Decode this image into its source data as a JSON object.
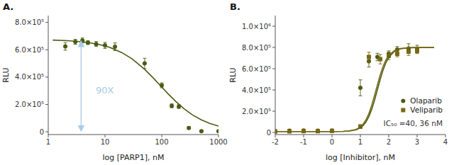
{
  "chart_data": [
    {
      "type": "scatter",
      "title": "A.",
      "x_label": "log [PARP1], nM",
      "y_label": "RLU",
      "log": "x",
      "grid": false,
      "xlim": [
        1,
        1000
      ],
      "ylim": [
        -20000,
        850000
      ],
      "xticks": [
        1,
        10,
        100,
        1000
      ],
      "yticks": [
        0,
        {
          "value": 200000,
          "label": "2.0×10⁵"
        },
        {
          "value": 400000,
          "label": "4.0×10⁵"
        },
        {
          "value": 600000,
          "label": "6.0×10⁵"
        },
        {
          "value": 800000,
          "label": "8.0×10⁵"
        }
      ],
      "series": [
        {
          "type": "scatter",
          "marker": "circle",
          "color": "#4a5c14",
          "x": [
            2,
            3,
            4,
            5,
            7,
            10,
            15,
            50,
            100,
            150,
            200,
            300,
            500,
            1000
          ],
          "values": [
            625000,
            658000,
            668000,
            652000,
            642000,
            632000,
            622000,
            500000,
            340000,
            190000,
            185000,
            28000,
            5000,
            4000
          ],
          "errors": [
            28000,
            18000,
            18000,
            14000,
            18000,
            22000,
            28000,
            38000,
            18000,
            14000,
            14000,
            9000,
            4000,
            4000
          ]
        },
        {
          "type": "line",
          "color": "#4a5c14",
          "x": [
            1.2,
            2,
            3,
            5,
            8,
            12,
            20,
            30,
            50,
            70,
            95,
            130,
            180,
            250,
            350,
            500,
            700,
            1000,
            1200
          ],
          "values": [
            670606,
            667129,
            662540,
            652906,
            637937,
            617786,
            578580,
            533324,
            456698,
            396163,
            337500,
            277283,
            218775,
            166971,
            123172,
            87074,
            61688,
            42231,
            34653
          ]
        }
      ],
      "annotations": [
        {
          "text": "90X",
          "x": 6.5,
          "y": 300000,
          "color": "#aacce8",
          "arrow": {
            "x": 3.8,
            "y": [
              660000,
              8000
            ]
          }
        }
      ]
    },
    {
      "type": "scatter",
      "title": "B.",
      "x_label": "log [Inhibitor], nM",
      "y_label": "RLU",
      "grid": false,
      "legend": "lower right",
      "xlim": [
        -2,
        4
      ],
      "ylim": [
        -20000,
        1100000
      ],
      "xticks": [
        -2,
        -1,
        0,
        1,
        2,
        3,
        4
      ],
      "yticks": [
        0,
        {
          "value": 200000,
          "label": "2.0×10⁵"
        },
        {
          "value": 400000,
          "label": "4.0×10⁵"
        },
        {
          "value": 600000,
          "label": "6.0×10⁵"
        },
        {
          "value": 800000,
          "label": "8.0×10⁵"
        },
        {
          "value": 1000000,
          "label": "1.0×10⁶"
        }
      ],
      "series": [
        {
          "name": "Olaparib",
          "type": "scatter",
          "marker": "circle",
          "color": "#4a5c14",
          "x": [
            -2.0,
            -1.5,
            -1.0,
            -0.5,
            0.0,
            1.0,
            1.3,
            1.6,
            2.0,
            2.3,
            2.7,
            3.0
          ],
          "values": [
            14000,
            16000,
            18000,
            16000,
            18000,
            420000,
            670000,
            710000,
            740000,
            780000,
            790000,
            785000
          ],
          "errors": [
            4000,
            4000,
            4000,
            4000,
            4000,
            75000,
            55000,
            35000,
            28000,
            28000,
            45000,
            35000
          ]
        },
        {
          "name": "Veliparib",
          "type": "scatter",
          "marker": "square",
          "color": "#7a6814",
          "x": [
            -2.0,
            -1.5,
            -1.0,
            -0.5,
            0.0,
            1.0,
            1.3,
            1.7,
            2.0,
            2.3,
            2.7,
            3.0
          ],
          "values": [
            8000,
            10000,
            12000,
            12000,
            14000,
            55000,
            710000,
            690000,
            720000,
            740000,
            760000,
            770000
          ],
          "errors": [
            4000,
            4000,
            4000,
            4000,
            4000,
            18000,
            45000,
            45000,
            35000,
            28000,
            35000,
            28000
          ]
        },
        {
          "type": "line",
          "color": "#4a5c14",
          "x": [
            -2.3,
            -1,
            0,
            0.4,
            0.6,
            0.8,
            0.9,
            1.0,
            1.1,
            1.2,
            1.3,
            1.4,
            1.5,
            1.6,
            1.7,
            1.8,
            1.9,
            2.0,
            2.2,
            2.4,
            2.7,
            3.0,
            3.6
          ],
          "values": [
            8000,
            8001,
            8237,
            9791,
            12914,
            21390,
            29979,
            43818,
            65726,
            99413,
            148955,
            217380,
            303843,
            401934,
            500268,
            587388,
            656612,
            706887,
            763462,
            786333,
            796969,
            799335,
            799968
          ]
        },
        {
          "type": "line",
          "color": "#7a6814",
          "x": [
            -2.3,
            -1,
            0,
            0.4,
            0.6,
            0.8,
            0.9,
            1.0,
            1.1,
            1.2,
            1.3,
            1.4,
            1.5,
            1.6,
            1.7,
            1.8,
            1.9,
            2.0,
            2.2,
            2.4,
            2.7,
            3.0,
            3.6
          ],
          "values": [
            8000,
            8002,
            8298,
            10257,
            14188,
            24809,
            35511,
            52632,
            79419,
            119872,
            177830,
            254937,
            347929,
            447677,
            542078,
            621492,
            681853,
            724321,
            770746,
            789121,
            797594,
            799472,
            799975
          ]
        }
      ],
      "annotations": [
        {
          "text": "IC₅₀ =40, 36 nM"
        }
      ]
    }
  ]
}
